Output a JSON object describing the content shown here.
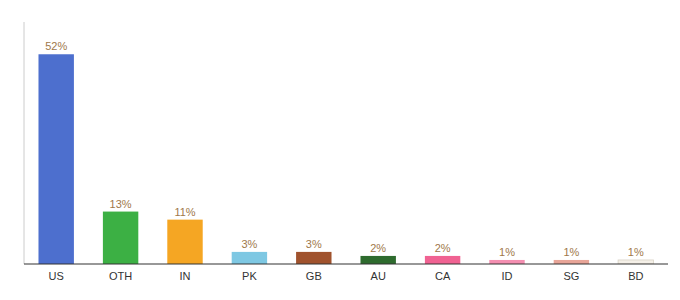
{
  "chart_data": {
    "type": "bar",
    "categories": [
      "US",
      "OTH",
      "IN",
      "PK",
      "GB",
      "AU",
      "CA",
      "ID",
      "SG",
      "BD"
    ],
    "values": [
      52,
      13,
      11,
      3,
      3,
      2,
      2,
      1,
      1,
      1
    ],
    "value_labels": [
      "52%",
      "13%",
      "11%",
      "3%",
      "3%",
      "2%",
      "2%",
      "1%",
      "1%",
      "1%"
    ],
    "colors": [
      "#4d6fce",
      "#3cb044",
      "#f5a623",
      "#7ec8e3",
      "#a0522d",
      "#2e6b2e",
      "#f06292",
      "#f48fb1",
      "#e8a598",
      "#f5f0e8"
    ],
    "ylim": [
      0,
      60
    ],
    "data_labels": true,
    "tick_labels": "x",
    "grid": false
  }
}
